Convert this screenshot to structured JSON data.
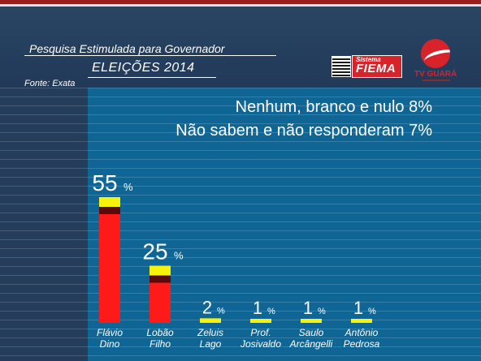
{
  "header": {
    "survey_title": "Pesquisa Estimulada para Governador",
    "election_title": "ELEIÇÕES 2014",
    "source": "Fonte: Exata"
  },
  "logos": {
    "fiema_small": "Sistema",
    "fiema_big": "FIEMA",
    "tv_name": "TV GUARÁ"
  },
  "notes": [
    "Nenhum, branco e nulo 8%",
    "Não sabem e não responderam 7%"
  ],
  "colors": {
    "bar_main": "#ff1a1a",
    "bar_top": "#f7f20c",
    "bar_dark": "#5a0a0a",
    "panel": "#0f6594"
  },
  "chart_data": {
    "type": "bar",
    "title": "Pesquisa Estimulada para Governador",
    "subtitle": "ELEIÇÕES 2014",
    "unit": "%",
    "categories": [
      [
        "Flávio",
        "Dino"
      ],
      [
        "Lobão",
        "Filho"
      ],
      [
        "Zeluis",
        "Lago"
      ],
      [
        "Prof.",
        "Josivaldo"
      ],
      [
        "Saulo",
        "Arcângelli"
      ],
      [
        "Antônio",
        "Pedrosa"
      ]
    ],
    "values": [
      55,
      25,
      2,
      1,
      1,
      1
    ],
    "labels": [
      "55",
      "25",
      "2",
      "1",
      "1",
      "1"
    ],
    "extra": [
      {
        "label": "Nenhum, branco e nulo",
        "value": 8
      },
      {
        "label": "Não sabem e não responderam",
        "value": 7
      }
    ]
  }
}
